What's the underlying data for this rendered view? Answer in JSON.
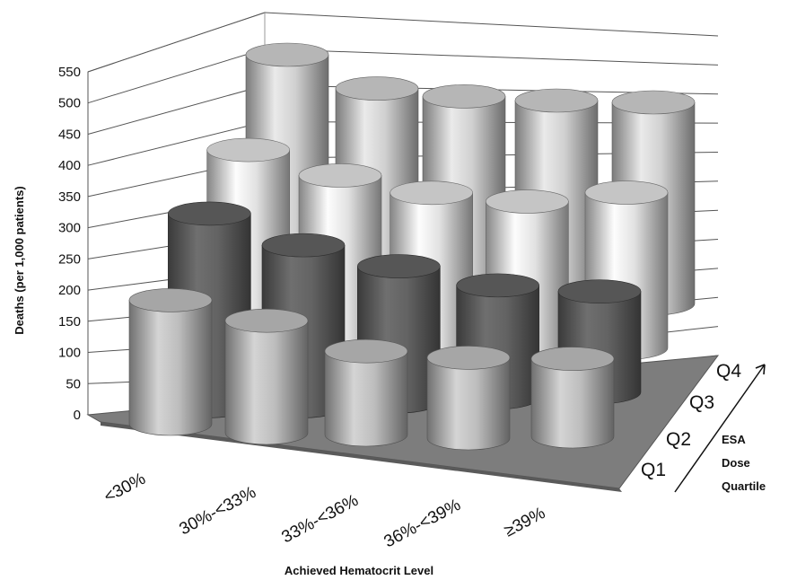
{
  "chart_data": {
    "type": "bar",
    "style": "3d-cylinder",
    "title": "",
    "xlabel": "Achieved Hematocrit Level",
    "ylabel": "Deaths (per 1,000 patients)",
    "zlabel_lines": [
      "ESA",
      "Dose",
      "Quartile"
    ],
    "ylim": [
      0,
      550
    ],
    "yticks": [
      "0",
      "50",
      "100",
      "150",
      "200",
      "250",
      "300",
      "350",
      "400",
      "450",
      "500",
      "550"
    ],
    "categories": [
      "<30%",
      "30%-<33%",
      "33%-<36%",
      "36%-<39%",
      "≥39%"
    ],
    "grid": true,
    "legend": "none",
    "series": [
      {
        "name": "Q1",
        "values": [
          215,
          195,
          145,
          140,
          135
        ]
      },
      {
        "name": "Q2",
        "values": [
          335,
          280,
          235,
          195,
          175
        ]
      },
      {
        "name": "Q3",
        "values": [
          415,
          355,
          305,
          270,
          270
        ]
      },
      {
        "name": "Q4",
        "values": [
          550,
          460,
          415,
          375,
          350
        ]
      }
    ],
    "colors": {
      "Q1": "#b4b4b4",
      "Q2": "#5e5e5e",
      "Q3": "#d6d6d6",
      "Q4": "#c6c6c6"
    }
  }
}
